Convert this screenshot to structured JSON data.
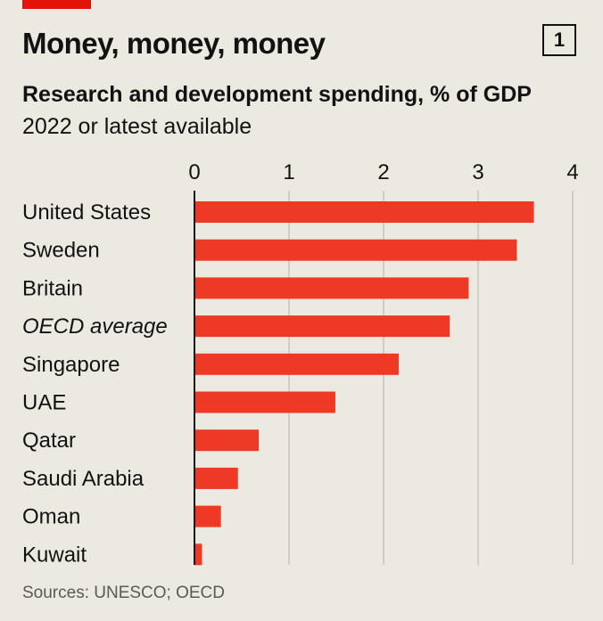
{
  "header": {
    "title": "Money, money, money",
    "badge": "1",
    "subtitle": "Research and development spending, % of GDP",
    "subtitle2": "2022 or latest available"
  },
  "footer": {
    "source": "Sources: UNESCO; OECD"
  },
  "colors": {
    "bar": "#ee3a24",
    "accent": "#e3120b",
    "background": "#ece9e1",
    "grid": "#b7b3aa"
  },
  "chart_data": {
    "type": "bar",
    "orientation": "horizontal",
    "categories": [
      "United States",
      "Sweden",
      "Britain",
      "OECD average",
      "Singapore",
      "UAE",
      "Qatar",
      "Saudi Arabia",
      "Oman",
      "Kuwait"
    ],
    "italic_categories": [
      "OECD average"
    ],
    "values": [
      3.59,
      3.41,
      2.9,
      2.7,
      2.16,
      1.49,
      0.68,
      0.46,
      0.28,
      0.08
    ],
    "xlim": [
      0,
      4
    ],
    "xticks": [
      "0",
      "1",
      "2",
      "3",
      "4"
    ],
    "grid": true,
    "title": "Money, money, money",
    "xlabel": "",
    "ylabel": ""
  }
}
